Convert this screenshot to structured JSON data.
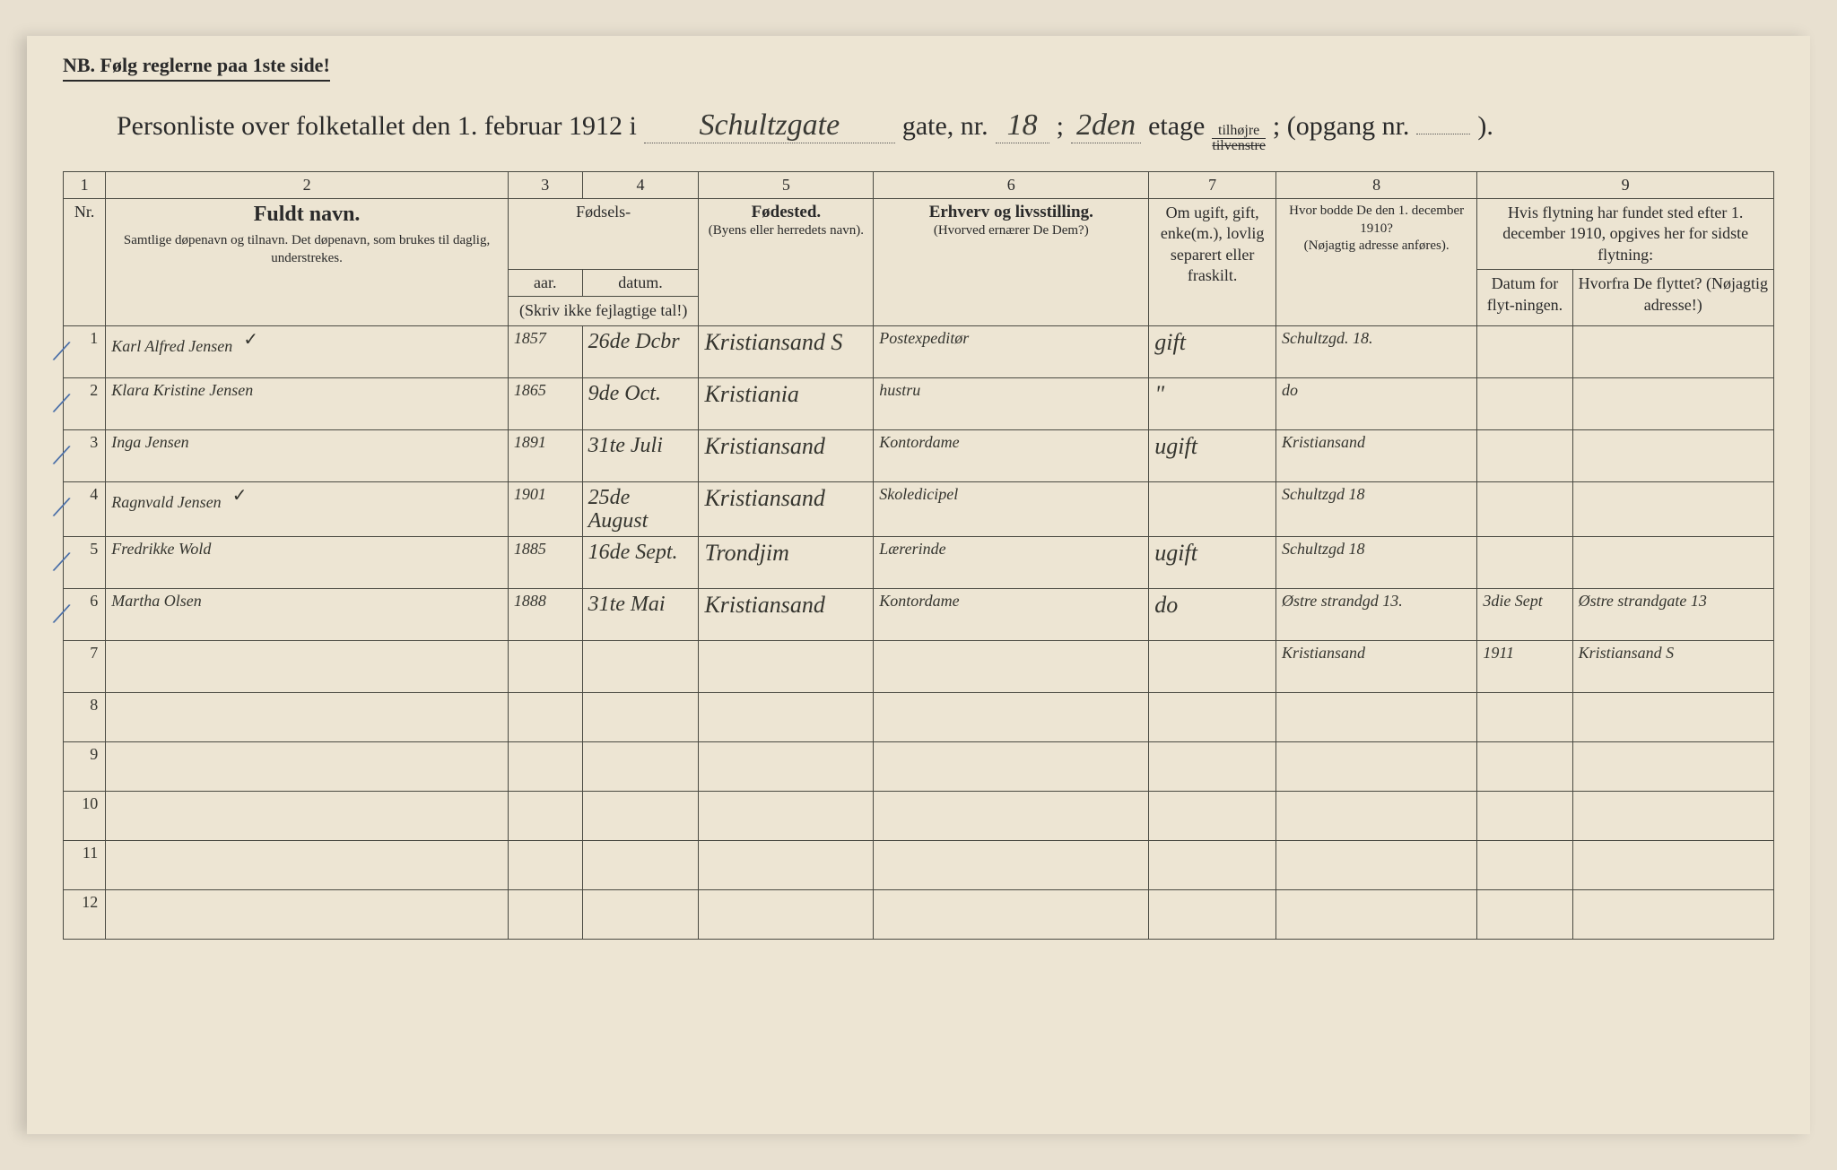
{
  "nb_text": "NB.  Følg reglerne paa 1ste side!",
  "title": {
    "prefix": "Personliste over folketallet den 1. februar 1912 i",
    "street_hand": "Schultzgate",
    "gate_label": "gate, nr.",
    "gate_nr": "18",
    "semicolon": ";",
    "etage_hand": "2den",
    "etage_label": "etage",
    "side_top": "tilhøjre",
    "side_bottom": "tilvenstre",
    "opgang_label": "; (opgang nr.",
    "opgang_val": "",
    "end": ")."
  },
  "colnums": [
    "1",
    "2",
    "3",
    "4",
    "5",
    "6",
    "7",
    "8",
    "9"
  ],
  "headers": {
    "nr": "Nr.",
    "name_big": "Fuldt navn.",
    "name_sub": "Samtlige døpenavn og tilnavn. Det døpenavn, som brukes til daglig, understrekes.",
    "birth_group": "Fødsels-",
    "birth_year": "aar.",
    "birth_date": "datum.",
    "birth_note": "(Skriv ikke fejlagtige tal!)",
    "place_big": "Fødested.",
    "place_sub": "(Byens eller herredets navn).",
    "occ_big": "Erhverv og livsstilling.",
    "occ_sub": "(Hvorved ernærer De Dem?)",
    "status": "Om ugift, gift, enke(m.), lovlig separert eller fraskilt.",
    "addr_big": "Hvor bodde De den 1. december 1910?",
    "addr_sub": "(Nøjagtig adresse anføres).",
    "move_top": "Hvis flytning har fundet sted efter 1. december 1910, opgives her for sidste flytning:",
    "move_date": "Datum for flyt-ningen.",
    "move_from": "Hvorfra De flyttet? (Nøjagtig adresse!)"
  },
  "rows": [
    {
      "nr": "1",
      "tick": true,
      "name": "Karl Alfred Jensen",
      "check": "✓",
      "year": "1857",
      "date": "26de Dcbr",
      "place": "Kristiansand S",
      "occ": "Postexpeditør",
      "status": "gift",
      "addr": "Schultzgd. 18.",
      "mdate": "",
      "mfrom": ""
    },
    {
      "nr": "2",
      "tick": true,
      "name": "Klara Kristine Jensen",
      "check": "",
      "year": "1865",
      "date": "9de Oct.",
      "place": "Kristiania",
      "occ": "hustru",
      "status": "\"",
      "addr": "do",
      "mdate": "",
      "mfrom": ""
    },
    {
      "nr": "3",
      "tick": true,
      "name": "Inga Jensen",
      "check": "",
      "year": "1891",
      "date": "31te Juli",
      "place": "Kristiansand",
      "occ": "Kontordame",
      "status": "ugift",
      "addr": "Kristiansand",
      "mdate": "",
      "mfrom": ""
    },
    {
      "nr": "4",
      "tick": true,
      "name": "Ragnvald Jensen",
      "check": "✓",
      "year": "1901",
      "date": "25de August",
      "place": "Kristiansand",
      "occ": "Skoledicipel",
      "status": "",
      "addr": "Schultzgd 18",
      "mdate": "",
      "mfrom": ""
    },
    {
      "nr": "5",
      "tick": true,
      "name": "Fredrikke Wold",
      "check": "",
      "year": "1885",
      "date": "16de Sept.",
      "place": "Trondjim",
      "occ": "Lærerinde",
      "status": "ugift",
      "addr": "Schultzgd 18",
      "mdate": "",
      "mfrom": ""
    },
    {
      "nr": "6",
      "tick": true,
      "name": "Martha Olsen",
      "check": "",
      "year": "1888",
      "date": "31te Mai",
      "place": "Kristiansand",
      "occ": "Kontordame",
      "status": "do",
      "addr": "Østre strandgd 13.",
      "mdate": "3die Sept",
      "mfrom": "Østre strandgate 13"
    },
    {
      "nr": "7",
      "tick": false,
      "name": "",
      "check": "",
      "year": "",
      "date": "",
      "place": "",
      "occ": "",
      "status": "",
      "addr": "Kristiansand",
      "mdate": "1911",
      "mfrom": "Kristiansand S"
    }
  ],
  "empty_rows": [
    "8",
    "9",
    "10",
    "11",
    "12"
  ]
}
